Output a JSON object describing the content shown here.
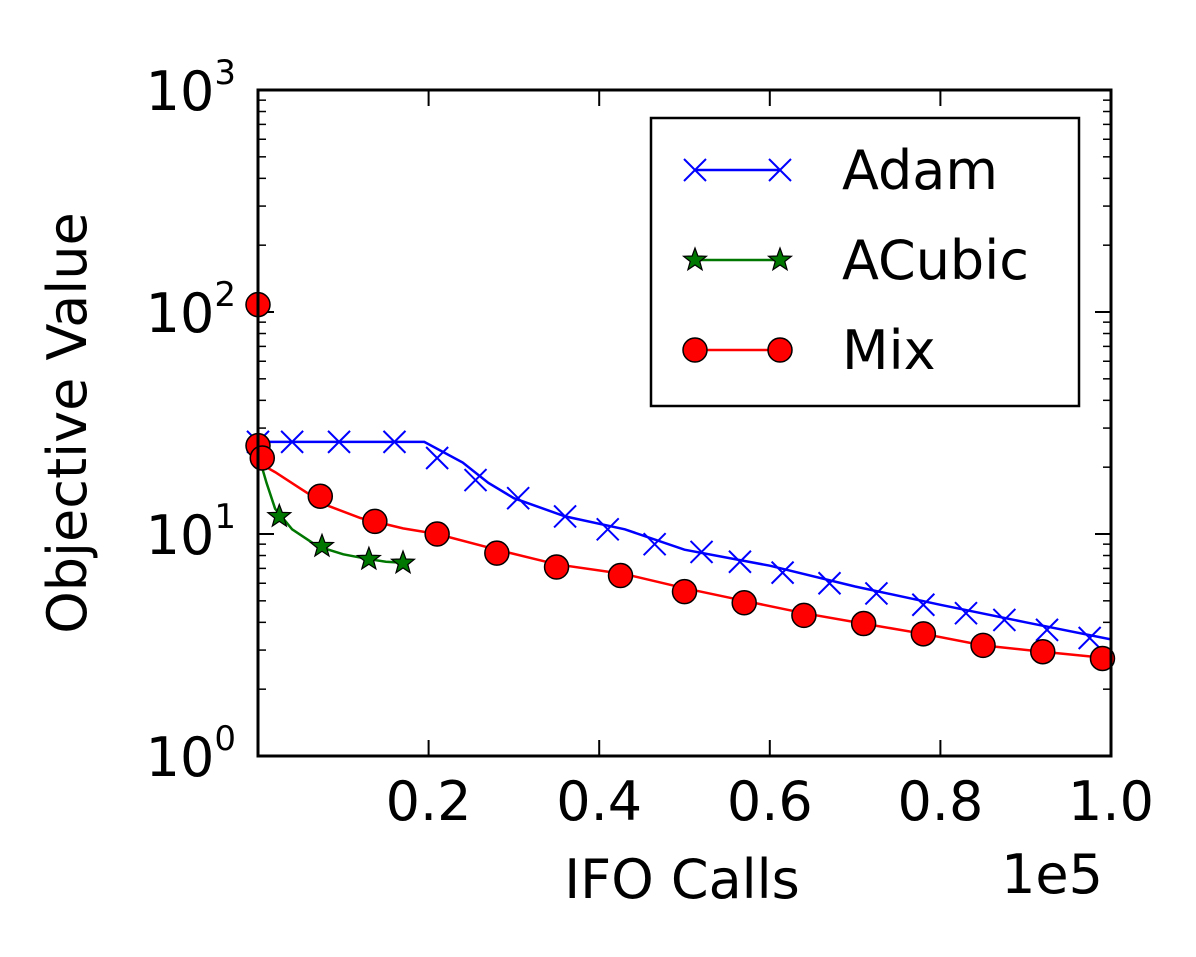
{
  "chart_data": {
    "type": "line",
    "xlabel": "IFO Calls",
    "ylabel": "Objective Value",
    "x_scale_label": "1e5",
    "xlim": [
      0,
      1.0
    ],
    "ylim": [
      1,
      1000
    ],
    "y_scale": "log",
    "x_ticks": [
      {
        "value": 0.2,
        "label": "0.2"
      },
      {
        "value": 0.4,
        "label": "0.4"
      },
      {
        "value": 0.6,
        "label": "0.6"
      },
      {
        "value": 0.8,
        "label": "0.8"
      },
      {
        "value": 1.0,
        "label": "1.0"
      }
    ],
    "y_ticks": [
      {
        "value": 1,
        "base": "10",
        "exp": "0"
      },
      {
        "value": 10,
        "base": "10",
        "exp": "1"
      },
      {
        "value": 100,
        "base": "10",
        "exp": "2"
      },
      {
        "value": 1000,
        "base": "10",
        "exp": "3"
      }
    ],
    "legend_position": "top-right",
    "grid": false,
    "series": [
      {
        "name": "Adam",
        "color": "#0000ff",
        "marker": "x",
        "line": [
          [
            0,
            26
          ],
          [
            0.195,
            26
          ],
          [
            0.24,
            21
          ],
          [
            0.27,
            17
          ],
          [
            0.3,
            14.5
          ],
          [
            0.36,
            12
          ],
          [
            0.43,
            10.5
          ],
          [
            0.5,
            8.5
          ],
          [
            0.6,
            7.2
          ],
          [
            0.7,
            5.8
          ],
          [
            0.8,
            4.8
          ],
          [
            0.9,
            4.0
          ],
          [
            1.0,
            3.35
          ]
        ],
        "markers": [
          [
            0,
            26
          ],
          [
            0.04,
            26
          ],
          [
            0.095,
            26
          ],
          [
            0.16,
            26
          ],
          [
            0.21,
            22
          ],
          [
            0.255,
            17.5
          ],
          [
            0.305,
            14.5
          ],
          [
            0.36,
            12
          ],
          [
            0.41,
            10.5
          ],
          [
            0.465,
            9.0
          ],
          [
            0.52,
            8.3
          ],
          [
            0.565,
            7.5
          ],
          [
            0.615,
            6.7
          ],
          [
            0.67,
            6.0
          ],
          [
            0.725,
            5.4
          ],
          [
            0.78,
            4.8
          ],
          [
            0.83,
            4.4
          ],
          [
            0.875,
            4.1
          ],
          [
            0.925,
            3.7
          ],
          [
            0.975,
            3.4
          ]
        ]
      },
      {
        "name": "ACubic",
        "color": "#007700",
        "marker": "star",
        "line": [
          [
            0,
            23
          ],
          [
            0.01,
            17
          ],
          [
            0.02,
            13
          ],
          [
            0.04,
            10.5
          ],
          [
            0.07,
            8.8
          ],
          [
            0.1,
            8.1
          ],
          [
            0.13,
            7.7
          ],
          [
            0.15,
            7.5
          ],
          [
            0.175,
            7.4
          ]
        ],
        "markers": [
          [
            0.025,
            12
          ],
          [
            0.075,
            8.8
          ],
          [
            0.13,
            7.7
          ],
          [
            0.17,
            7.4
          ]
        ]
      },
      {
        "name": "Mix",
        "color": "#ff0000",
        "marker": "circle",
        "line": [
          [
            0,
            21
          ],
          [
            0.02,
            19
          ],
          [
            0.05,
            16
          ],
          [
            0.08,
            13.5
          ],
          [
            0.12,
            11.8
          ],
          [
            0.17,
            10.6
          ],
          [
            0.21,
            10
          ],
          [
            0.28,
            8.5
          ],
          [
            0.35,
            7.3
          ],
          [
            0.43,
            6.6
          ],
          [
            0.5,
            5.7
          ],
          [
            0.57,
            5.0
          ],
          [
            0.64,
            4.4
          ],
          [
            0.71,
            3.95
          ],
          [
            0.78,
            3.55
          ],
          [
            0.85,
            3.15
          ],
          [
            0.92,
            2.95
          ],
          [
            1.0,
            2.75
          ]
        ],
        "markers": [
          [
            0,
            108
          ],
          [
            0,
            25
          ],
          [
            0.005,
            22
          ],
          [
            0.073,
            14.8
          ],
          [
            0.137,
            11.4
          ],
          [
            0.21,
            10
          ],
          [
            0.28,
            8.2
          ],
          [
            0.35,
            7.1
          ],
          [
            0.425,
            6.5
          ],
          [
            0.5,
            5.5
          ],
          [
            0.57,
            4.9
          ],
          [
            0.64,
            4.3
          ],
          [
            0.71,
            3.95
          ],
          [
            0.78,
            3.55
          ],
          [
            0.85,
            3.15
          ],
          [
            0.92,
            2.95
          ],
          [
            0.99,
            2.75
          ]
        ]
      }
    ]
  }
}
